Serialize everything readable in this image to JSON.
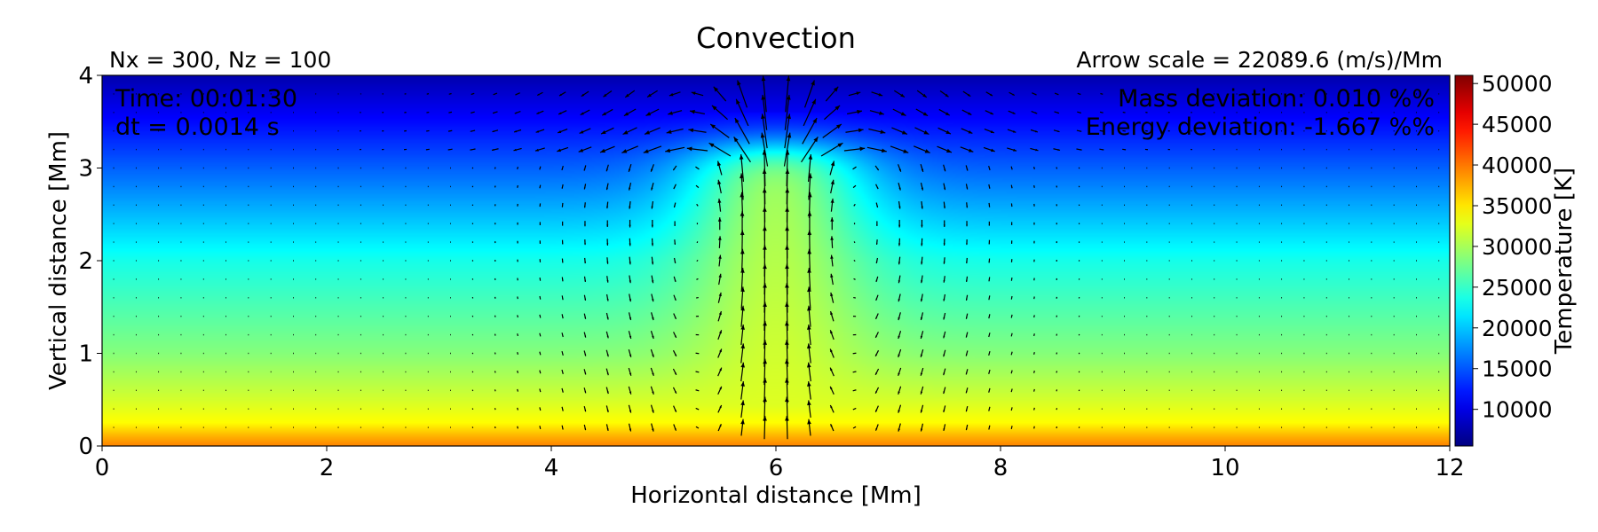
{
  "chart_data": {
    "type": "heatmap",
    "title": "Convection",
    "subtitle_left": "Nx = 300, Nz = 100",
    "subtitle_right": "Arrow scale = 22089.6 (m/s)/Mm",
    "xlabel": "Horizontal distance [Mm]",
    "ylabel": "Vertical distance [Mm]",
    "xlim": [
      0,
      12
    ],
    "ylim": [
      0,
      4
    ],
    "xticks": [
      "0",
      "2",
      "4",
      "6",
      "8",
      "10",
      "12"
    ],
    "yticks": [
      "0",
      "1",
      "2",
      "3",
      "4"
    ],
    "colorbar": {
      "label": "Temperature [K]",
      "range": [
        5500,
        51000
      ],
      "ticks": [
        "10000",
        "15000",
        "20000",
        "25000",
        "30000",
        "35000",
        "40000",
        "45000",
        "50000"
      ],
      "colormap": "jet"
    },
    "annotations": {
      "time": "Time: 00:01:30",
      "dt": "dt = 0.0014 s",
      "mass": "Mass deviation: 0.010 %%",
      "energy": "Energy deviation: -1.667 %%"
    },
    "background_temperature_profile": [
      {
        "z": 0.0,
        "T": 39500
      },
      {
        "z": 0.1,
        "T": 37500
      },
      {
        "z": 0.25,
        "T": 34000
      },
      {
        "z": 0.5,
        "T": 32000
      },
      {
        "z": 1.0,
        "T": 28500
      },
      {
        "z": 1.5,
        "T": 26000
      },
      {
        "z": 2.0,
        "T": 23500
      },
      {
        "z": 2.5,
        "T": 19500
      },
      {
        "z": 3.0,
        "T": 15500
      },
      {
        "z": 3.5,
        "T": 11500
      },
      {
        "z": 4.0,
        "T": 7500
      }
    ],
    "plume": {
      "center_x": 6.0,
      "top_z": 3.2,
      "half_width": 1.2,
      "peak_T": 33000
    },
    "vector_field": {
      "x_spacing": 0.2,
      "z_spacing": 0.2,
      "arrow_scale": 22089.6,
      "max_speed_near_center": 22000
    }
  }
}
